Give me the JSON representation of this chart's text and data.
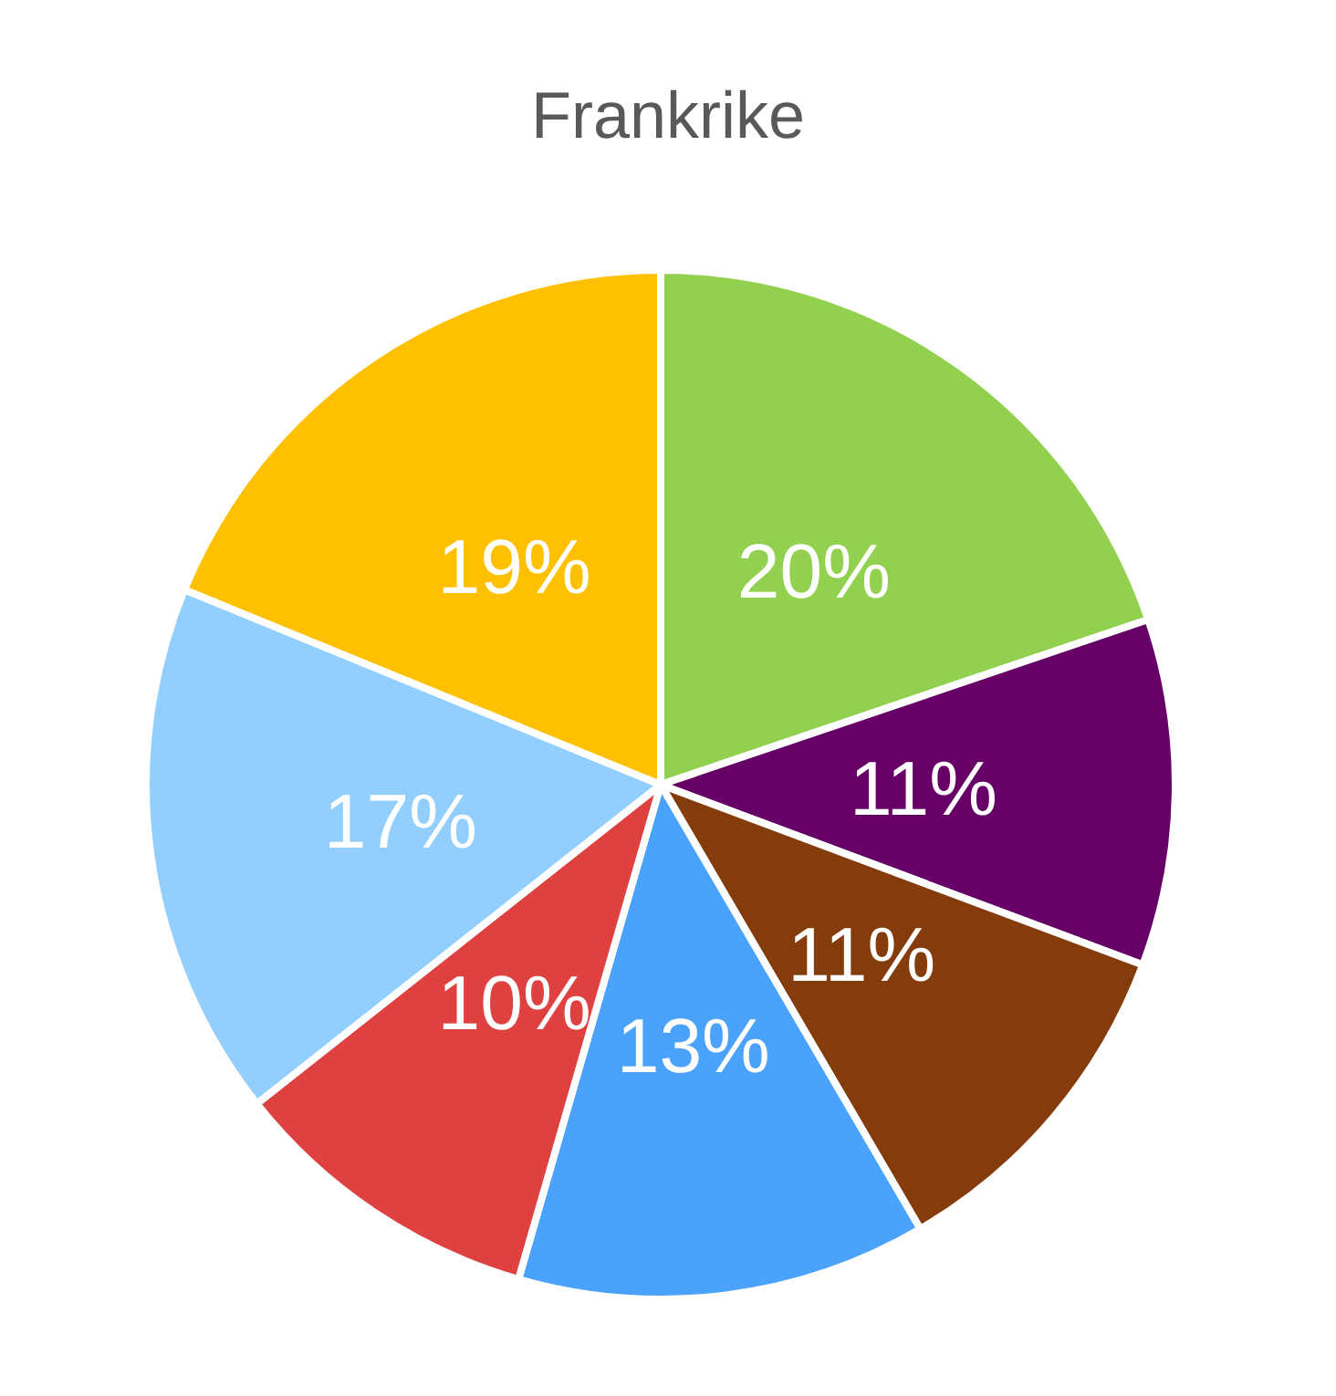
{
  "chart_data": {
    "type": "pie",
    "title": "Frankrike",
    "categories": [
      null,
      null,
      null,
      null,
      null,
      null,
      null
    ],
    "values": [
      20,
      11,
      11,
      13,
      10,
      17,
      19
    ],
    "value_labels": [
      "20%",
      "11%",
      "11%",
      "13%",
      "10%",
      "17%",
      "19%"
    ],
    "colors": [
      "#92d050",
      "#660066",
      "#843c0c",
      "#4aa2fb",
      "#df4040",
      "#92cffe",
      "#ffc000"
    ]
  }
}
